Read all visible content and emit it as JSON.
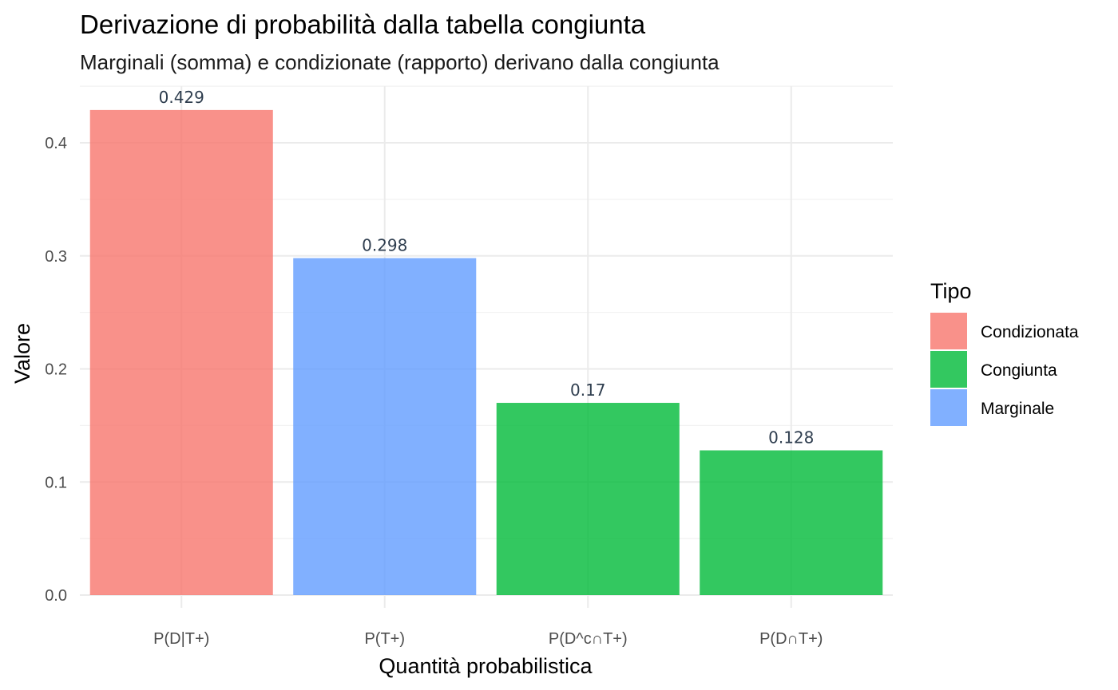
{
  "chart_data": {
    "type": "bar",
    "title": "Derivazione di probabilità dalla tabella congiunta",
    "subtitle": "Marginali (somma) e condizionate (rapporto) derivano dalla congiunta",
    "xlabel": "Quantità probabilistica",
    "ylabel": "Valore",
    "categories": [
      "P(D|T+)",
      "P(T+)",
      "P(D^c∩T+)",
      "P(D∩T+)"
    ],
    "values": [
      0.429,
      0.298,
      0.17,
      0.128
    ],
    "data_labels": [
      "0.429",
      "0.298",
      "0.17",
      "0.128"
    ],
    "bar_types": [
      "Condizionata",
      "Marginale",
      "Congiunta",
      "Congiunta"
    ],
    "ylim": [
      0,
      0.45
    ],
    "y_ticks": [
      0.0,
      0.1,
      0.2,
      0.3,
      0.4
    ],
    "y_tick_labels": [
      "0.0",
      "0.1",
      "0.2",
      "0.3",
      "0.4"
    ],
    "grid": true,
    "legend": {
      "title": "Tipo",
      "placement": "right",
      "entries": [
        {
          "label": "Condizionata",
          "color": "#F8766D"
        },
        {
          "label": "Congiunta",
          "color": "#00BA38"
        },
        {
          "label": "Marginale",
          "color": "#619CFF"
        }
      ]
    }
  }
}
